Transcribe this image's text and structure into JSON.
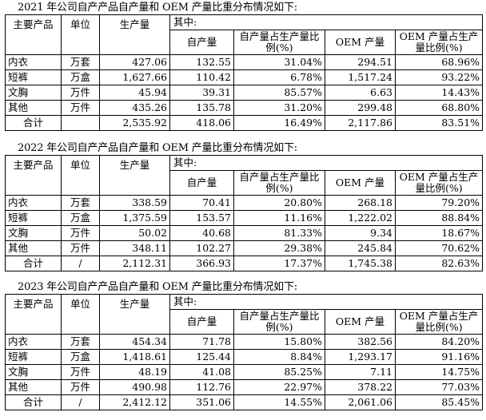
{
  "headers": {
    "product": "主要产品",
    "unit": "单位",
    "production": "生产量",
    "of_which": "其中:",
    "self_output": "自产量",
    "self_ratio": "自产量占生产量比例(%)",
    "oem_output": "OEM 产量",
    "oem_ratio": "OEM 产量占生产量比例(%)"
  },
  "tables": [
    {
      "caption": "2021 年公司自产产品自产量和 OEM 产量比重分布情况如下:",
      "rows": [
        {
          "product": "内衣",
          "unit": "万套",
          "production": "427.06",
          "self_output": "132.55",
          "self_ratio": "31.04%",
          "oem_output": "294.51",
          "oem_ratio": "68.96%"
        },
        {
          "product": "短裤",
          "unit": "万盒",
          "production": "1,627.66",
          "self_output": "110.42",
          "self_ratio": "6.78%",
          "oem_output": "1,517.24",
          "oem_ratio": "93.22%"
        },
        {
          "product": "文胸",
          "unit": "万件",
          "production": "45.94",
          "self_output": "39.31",
          "self_ratio": "85.57%",
          "oem_output": "6.63",
          "oem_ratio": "14.43%"
        },
        {
          "product": "其他",
          "unit": "万件",
          "production": "435.26",
          "self_output": "135.78",
          "self_ratio": "31.20%",
          "oem_output": "299.48",
          "oem_ratio": "68.80%"
        }
      ],
      "total": {
        "product": "合计",
        "unit": "",
        "production": "2,535.92",
        "self_output": "418.06",
        "self_ratio": "16.49%",
        "oem_output": "2,117.86",
        "oem_ratio": "83.51%"
      }
    },
    {
      "caption": "2022 年公司自产产品自产量和 OEM 产量比重分布情况如下:",
      "rows": [
        {
          "product": "内衣",
          "unit": "万套",
          "production": "338.59",
          "self_output": "70.41",
          "self_ratio": "20.80%",
          "oem_output": "268.18",
          "oem_ratio": "79.20%"
        },
        {
          "product": "短裤",
          "unit": "万盒",
          "production": "1,375.59",
          "self_output": "153.57",
          "self_ratio": "11.16%",
          "oem_output": "1,222.02",
          "oem_ratio": "88.84%"
        },
        {
          "product": "文胸",
          "unit": "万件",
          "production": "50.02",
          "self_output": "40.68",
          "self_ratio": "81.33%",
          "oem_output": "9.34",
          "oem_ratio": "18.67%"
        },
        {
          "product": "其他",
          "unit": "万件",
          "production": "348.11",
          "self_output": "102.27",
          "self_ratio": "29.38%",
          "oem_output": "245.84",
          "oem_ratio": "70.62%"
        }
      ],
      "total": {
        "product": "合计",
        "unit": "/",
        "production": "2,112.31",
        "self_output": "366.93",
        "self_ratio": "17.37%",
        "oem_output": "1,745.38",
        "oem_ratio": "82.63%"
      }
    },
    {
      "caption": "2023 年公司自产产品自产量和 OEM 产量比重分布情况如下:",
      "rows": [
        {
          "product": "内衣",
          "unit": "万套",
          "production": "454.34",
          "self_output": "71.78",
          "self_ratio": "15.80%",
          "oem_output": "382.56",
          "oem_ratio": "84.20%"
        },
        {
          "product": "短裤",
          "unit": "万盒",
          "production": "1,418.61",
          "self_output": "125.44",
          "self_ratio": "8.84%",
          "oem_output": "1,293.17",
          "oem_ratio": "91.16%"
        },
        {
          "product": "文胸",
          "unit": "万件",
          "production": "48.19",
          "self_output": "41.08",
          "self_ratio": "85.25%",
          "oem_output": "7.11",
          "oem_ratio": "14.75%"
        },
        {
          "product": "其他",
          "unit": "万件",
          "production": "490.98",
          "self_output": "112.76",
          "self_ratio": "22.97%",
          "oem_output": "378.22",
          "oem_ratio": "77.03%"
        }
      ],
      "total": {
        "product": "合计",
        "unit": "/",
        "production": "2,412.12",
        "self_output": "351.06",
        "self_ratio": "14.55%",
        "oem_output": "2,061.06",
        "oem_ratio": "85.45%"
      }
    }
  ]
}
